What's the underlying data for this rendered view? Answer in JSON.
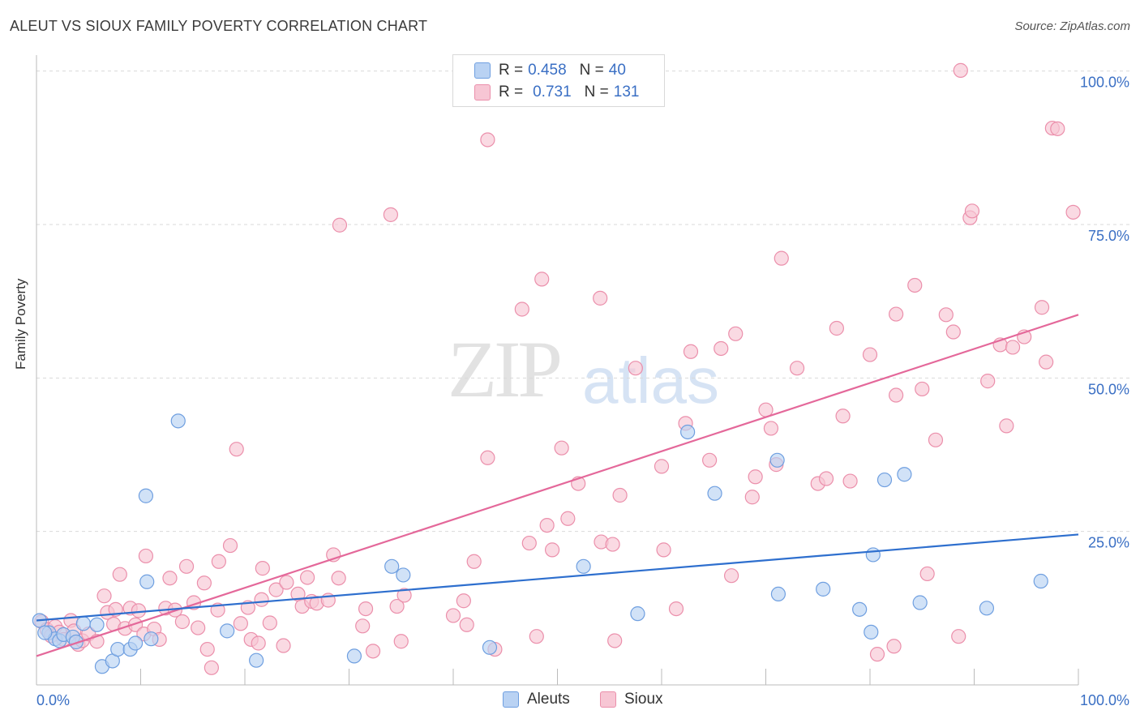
{
  "header": {
    "title": "ALEUT VS SIOUX FAMILY POVERTY CORRELATION CHART",
    "source": "Source: ZipAtlas.com"
  },
  "watermark": {
    "zip": "ZIP",
    "atlas": "atlas"
  },
  "legend": {
    "rows": [
      {
        "r_label": "R =",
        "r_value": "0.458",
        "n_label": "N =",
        "n_value": "40"
      },
      {
        "r_label": "R =",
        "r_value": "0.731",
        "n_label": "N =",
        "n_value": "131"
      }
    ],
    "bottom": [
      "Aleuts",
      "Sioux"
    ]
  },
  "colors": {
    "aleut_fill": "#b9d2f3",
    "aleut_stroke": "#6f9fe0",
    "aleut_line": "#2e6fce",
    "sioux_fill": "#f7c6d4",
    "sioux_stroke": "#eb8fab",
    "sioux_line": "#e4689a",
    "axis_text": "#3a6fc4",
    "grid": "#d9d9d9"
  },
  "chart_data": {
    "type": "scatter",
    "xlabel": "",
    "ylabel": "Family Poverty",
    "xlim": [
      0,
      100
    ],
    "ylim": [
      0,
      100
    ],
    "x_tick_labels": [
      "0.0%",
      "100.0%"
    ],
    "y_tick_labels": [
      "100.0%",
      "75.0%",
      "50.0%",
      "25.0%"
    ],
    "y_ticks": [
      100,
      75,
      50,
      25
    ],
    "grid": true,
    "legend_position": "top-center",
    "series": [
      {
        "name": "Aleuts",
        "r": 0.458,
        "n": 40,
        "trend": [
          [
            0,
            10.5
          ],
          [
            100,
            24.5
          ]
        ],
        "points": [
          [
            0.3,
            10.5
          ],
          [
            1.2,
            8.5
          ],
          [
            1.8,
            7.5
          ],
          [
            2.2,
            7.2
          ],
          [
            2.6,
            8.2
          ],
          [
            3.5,
            7.8
          ],
          [
            3.8,
            7.0
          ],
          [
            4.5,
            10.0
          ],
          [
            5.8,
            9.8
          ],
          [
            6.3,
            3.0
          ],
          [
            7.3,
            3.9
          ],
          [
            7.8,
            5.8
          ],
          [
            9.0,
            5.8
          ],
          [
            9.5,
            6.8
          ],
          [
            10.5,
            30.8
          ],
          [
            10.6,
            16.8
          ],
          [
            11.0,
            7.5
          ],
          [
            13.6,
            43.0
          ],
          [
            18.3,
            8.8
          ],
          [
            21.1,
            4.0
          ],
          [
            30.5,
            4.7
          ],
          [
            34.1,
            19.3
          ],
          [
            35.2,
            17.9
          ],
          [
            43.5,
            6.1
          ],
          [
            52.5,
            19.3
          ],
          [
            57.7,
            11.6
          ],
          [
            62.5,
            41.2
          ],
          [
            65.1,
            31.2
          ],
          [
            71.1,
            36.6
          ],
          [
            71.2,
            14.8
          ],
          [
            75.5,
            15.6
          ],
          [
            80.3,
            21.2
          ],
          [
            81.4,
            33.4
          ],
          [
            83.3,
            34.3
          ],
          [
            84.8,
            13.4
          ],
          [
            80.1,
            8.6
          ],
          [
            79.0,
            12.3
          ],
          [
            91.2,
            12.5
          ],
          [
            96.4,
            16.9
          ],
          [
            0.8,
            8.5
          ]
        ]
      },
      {
        "name": "Sioux",
        "r": 0.731,
        "n": 131,
        "trend": [
          [
            0,
            4.7
          ],
          [
            100,
            60.3
          ]
        ],
        "points": [
          [
            0.5,
            10.3
          ],
          [
            1.0,
            9.0
          ],
          [
            1.4,
            8.0
          ],
          [
            1.8,
            9.5
          ],
          [
            2.2,
            8.6
          ],
          [
            2.6,
            7.4
          ],
          [
            3.3,
            10.5
          ],
          [
            3.6,
            8.8
          ],
          [
            4.0,
            6.6
          ],
          [
            4.4,
            7.2
          ],
          [
            5.0,
            8.3
          ],
          [
            5.8,
            7.1
          ],
          [
            6.5,
            14.5
          ],
          [
            6.8,
            11.8
          ],
          [
            7.4,
            9.9
          ],
          [
            7.6,
            12.3
          ],
          [
            8.0,
            18.0
          ],
          [
            8.5,
            9.2
          ],
          [
            9.0,
            12.5
          ],
          [
            9.5,
            9.8
          ],
          [
            9.8,
            12.1
          ],
          [
            10.3,
            8.3
          ],
          [
            10.5,
            21.0
          ],
          [
            11.3,
            9.1
          ],
          [
            11.8,
            7.4
          ],
          [
            12.4,
            12.5
          ],
          [
            12.8,
            17.4
          ],
          [
            13.3,
            12.2
          ],
          [
            14.0,
            10.3
          ],
          [
            14.4,
            19.3
          ],
          [
            15.1,
            13.4
          ],
          [
            15.5,
            9.3
          ],
          [
            16.1,
            16.6
          ],
          [
            16.4,
            5.8
          ],
          [
            16.8,
            2.8
          ],
          [
            17.4,
            12.2
          ],
          [
            17.5,
            20.1
          ],
          [
            18.6,
            22.7
          ],
          [
            19.2,
            38.4
          ],
          [
            19.6,
            10.0
          ],
          [
            20.3,
            12.6
          ],
          [
            20.6,
            7.4
          ],
          [
            21.3,
            6.8
          ],
          [
            21.6,
            13.9
          ],
          [
            21.7,
            19.0
          ],
          [
            22.4,
            10.1
          ],
          [
            23.0,
            15.5
          ],
          [
            23.7,
            6.4
          ],
          [
            24.0,
            16.7
          ],
          [
            25.1,
            14.8
          ],
          [
            25.5,
            12.8
          ],
          [
            26.0,
            17.5
          ],
          [
            26.4,
            13.6
          ],
          [
            26.9,
            13.3
          ],
          [
            28.0,
            13.8
          ],
          [
            29.0,
            17.4
          ],
          [
            28.5,
            21.2
          ],
          [
            29.1,
            74.9
          ],
          [
            31.3,
            9.6
          ],
          [
            31.6,
            12.4
          ],
          [
            32.3,
            5.5
          ],
          [
            34.0,
            76.6
          ],
          [
            34.6,
            12.8
          ],
          [
            35.0,
            7.1
          ],
          [
            35.3,
            14.6
          ],
          [
            40.0,
            11.3
          ],
          [
            41.0,
            13.7
          ],
          [
            41.3,
            9.8
          ],
          [
            42.0,
            20.1
          ],
          [
            43.3,
            37.0
          ],
          [
            43.3,
            88.8
          ],
          [
            44.0,
            5.8
          ],
          [
            46.6,
            61.2
          ],
          [
            47.3,
            23.1
          ],
          [
            48.0,
            7.9
          ],
          [
            48.5,
            66.1
          ],
          [
            49.0,
            26.0
          ],
          [
            49.5,
            22.0
          ],
          [
            50.4,
            38.6
          ],
          [
            51.0,
            27.1
          ],
          [
            52.0,
            32.8
          ],
          [
            54.1,
            63.0
          ],
          [
            54.2,
            23.3
          ],
          [
            55.3,
            22.9
          ],
          [
            55.5,
            7.2
          ],
          [
            56.0,
            30.9
          ],
          [
            57.5,
            51.6
          ],
          [
            60.0,
            35.6
          ],
          [
            60.2,
            22.0
          ],
          [
            61.4,
            12.4
          ],
          [
            62.3,
            42.6
          ],
          [
            62.8,
            54.3
          ],
          [
            64.6,
            36.6
          ],
          [
            65.7,
            54.8
          ],
          [
            66.7,
            17.8
          ],
          [
            67.1,
            57.2
          ],
          [
            68.7,
            30.6
          ],
          [
            69.0,
            33.9
          ],
          [
            70.0,
            44.8
          ],
          [
            70.5,
            41.8
          ],
          [
            71.0,
            35.9
          ],
          [
            71.5,
            69.5
          ],
          [
            73.0,
            51.6
          ],
          [
            75.0,
            32.8
          ],
          [
            75.8,
            33.6
          ],
          [
            76.8,
            58.1
          ],
          [
            77.4,
            43.8
          ],
          [
            78.1,
            33.2
          ],
          [
            80.0,
            53.8
          ],
          [
            80.7,
            5.0
          ],
          [
            82.3,
            6.3
          ],
          [
            82.5,
            60.4
          ],
          [
            82.5,
            47.2
          ],
          [
            84.3,
            65.1
          ],
          [
            85.0,
            48.2
          ],
          [
            85.5,
            18.1
          ],
          [
            86.3,
            39.9
          ],
          [
            87.3,
            60.3
          ],
          [
            88.0,
            57.5
          ],
          [
            88.5,
            7.9
          ],
          [
            88.7,
            100.1
          ],
          [
            89.6,
            76.1
          ],
          [
            89.8,
            77.2
          ],
          [
            91.3,
            49.5
          ],
          [
            92.5,
            55.4
          ],
          [
            93.1,
            42.2
          ],
          [
            93.7,
            55.0
          ],
          [
            94.8,
            56.7
          ],
          [
            96.5,
            61.5
          ],
          [
            96.9,
            52.6
          ],
          [
            97.5,
            90.7
          ],
          [
            98.0,
            90.6
          ],
          [
            99.5,
            77.0
          ]
        ]
      }
    ]
  }
}
